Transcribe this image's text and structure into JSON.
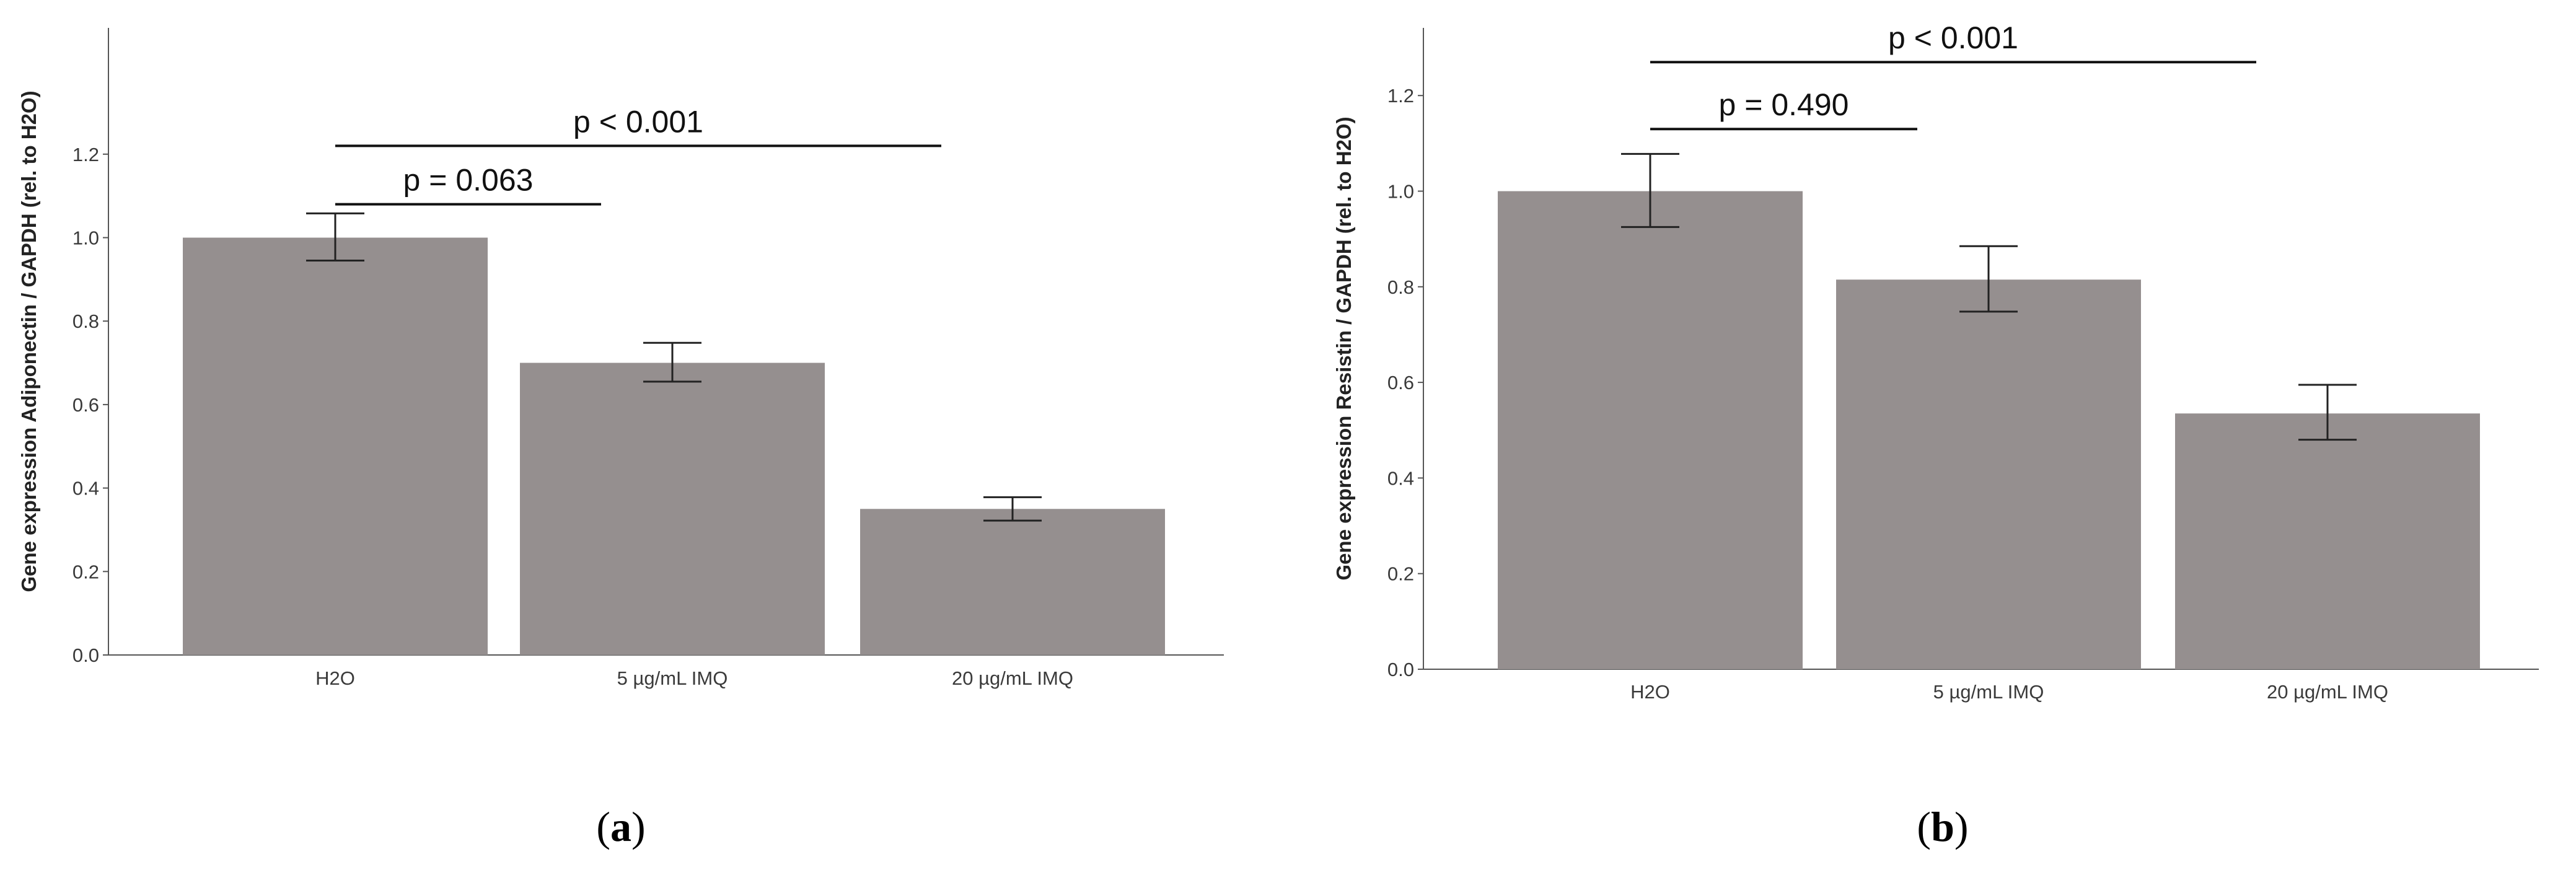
{
  "chart_data": [
    {
      "type": "bar",
      "panel_label": "(a)",
      "categories": [
        "H2O",
        "5 µg/mL IMQ",
        "20 µg/mL IMQ"
      ],
      "values": [
        1.0,
        0.7,
        0.35
      ],
      "error_low": [
        0.945,
        0.655,
        0.322
      ],
      "error_high": [
        1.058,
        0.748,
        0.378
      ],
      "ylabel": "Gene expression Adiponectin / GAPDH (rel. to H2O)",
      "xlabel": "",
      "ylim": [
        0,
        1.32
      ],
      "yticks": [
        0.0,
        0.2,
        0.4,
        0.6,
        0.8,
        1.0,
        1.2
      ],
      "ytick_labels": [
        "0.0",
        "0.2",
        "0.4",
        "0.6",
        "0.8",
        "1.0",
        "1.2"
      ],
      "bar_color": "#958f8f",
      "grid": false,
      "significance": [
        {
          "from": 0,
          "to": 1,
          "y": 1.08,
          "label": "p = 0.063"
        },
        {
          "from": 0,
          "to": 2,
          "y": 1.22,
          "label": "p < 0.001"
        }
      ]
    },
    {
      "type": "bar",
      "panel_label": "(b)",
      "categories": [
        "H2O",
        "5 µg/mL IMQ",
        "20 µg/mL IMQ"
      ],
      "values": [
        1.0,
        0.815,
        0.535
      ],
      "error_low": [
        0.925,
        0.748,
        0.48
      ],
      "error_high": [
        1.078,
        0.885,
        0.595
      ],
      "ylabel": "Gene expression Resistin / GAPDH (rel. to H2O)",
      "xlabel": "",
      "ylim": [
        0,
        1.32
      ],
      "yticks": [
        0.0,
        0.2,
        0.4,
        0.6,
        0.8,
        1.0,
        1.2
      ],
      "ytick_labels": [
        "0.0",
        "0.2",
        "0.4",
        "0.6",
        "0.8",
        "1.0",
        "1.2"
      ],
      "bar_color": "#958f8f",
      "grid": false,
      "significance": [
        {
          "from": 0,
          "to": 1,
          "y": 1.13,
          "label": "p = 0.490"
        },
        {
          "from": 0,
          "to": 2,
          "y": 1.27,
          "label": "p < 0.001"
        }
      ]
    }
  ]
}
